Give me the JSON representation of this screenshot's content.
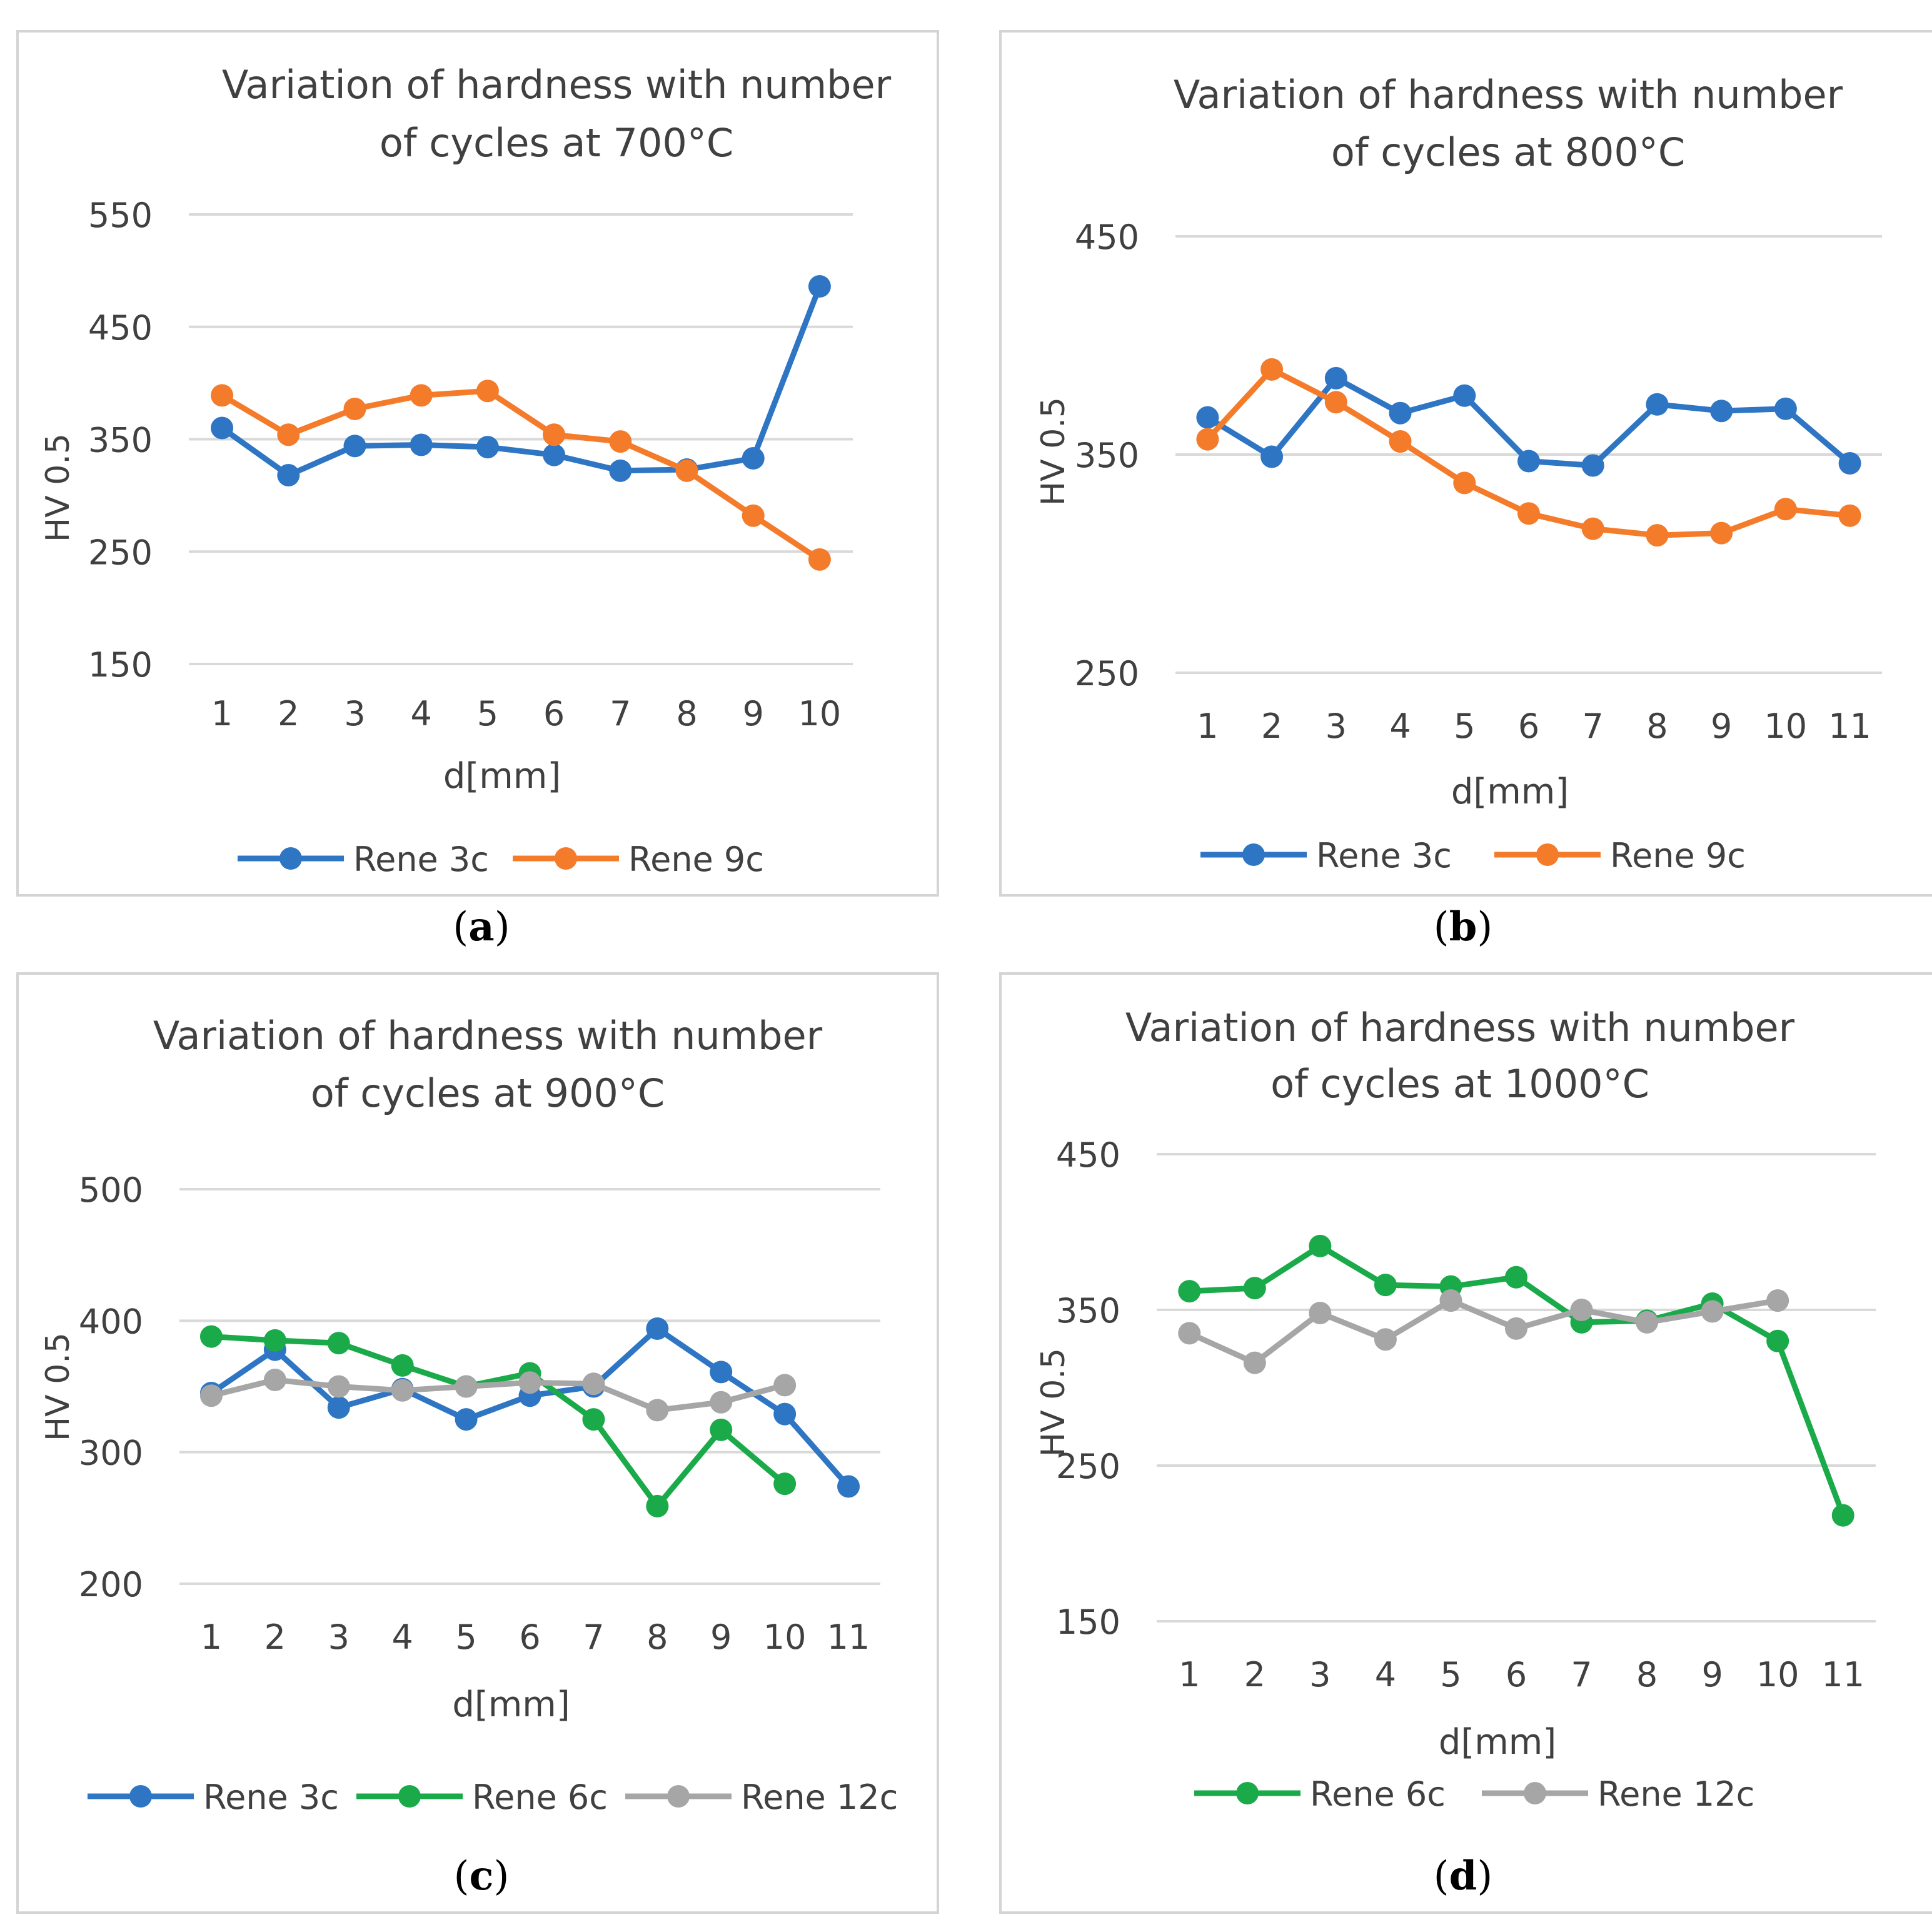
{
  "colors": {
    "Rene 3c": "#2e75c4",
    "Rene 6c": "#1aaa4a",
    "Rene 9c": "#f47b2a",
    "Rene 12c": "#a6a6a6",
    "grid": "#d9d9d9",
    "frame": "#d4d4d4",
    "text": "#404040"
  },
  "chart_data": [
    {
      "type": "line",
      "panel": "(a)",
      "caption": {
        "open": "(",
        "letter": "a",
        "close": ")"
      },
      "title_lines": [
        "Variation of hardness with number",
        "of cycles at 700°C"
      ],
      "xlabel": "d[mm]",
      "ylabel": "HV 0.5",
      "ylim": [
        150,
        550
      ],
      "yticks": [
        150,
        250,
        350,
        450,
        550
      ],
      "categories": [
        "1",
        "2",
        "3",
        "4",
        "5",
        "6",
        "7",
        "8",
        "9",
        "10"
      ],
      "grid": true,
      "legend_position": "bottom",
      "series": [
        {
          "name": "Rene 3c",
          "values": [
            360,
            318,
            344,
            345,
            343,
            336,
            322,
            323,
            333,
            486
          ]
        },
        {
          "name": "Rene 9c",
          "values": [
            389,
            354,
            377,
            389,
            393,
            354,
            348,
            322,
            282,
            243
          ]
        }
      ]
    },
    {
      "type": "line",
      "panel": "(b)",
      "caption": {
        "open": "(",
        "letter": "b",
        "close": ")"
      },
      "title_lines": [
        "Variation of hardness with number",
        "of cycles at 800°C"
      ],
      "xlabel": "d[mm]",
      "ylabel": "HV 0.5",
      "ylim": [
        250,
        450
      ],
      "yticks": [
        250,
        350,
        450
      ],
      "categories": [
        "1",
        "2",
        "3",
        "4",
        "5",
        "6",
        "7",
        "8",
        "9",
        "10",
        "11"
      ],
      "grid": true,
      "legend_position": "bottom",
      "series": [
        {
          "name": "Rene 3c",
          "values": [
            367,
            349,
            385,
            369,
            377,
            347,
            345,
            373,
            370,
            371,
            346
          ]
        },
        {
          "name": "Rene 9c",
          "values": [
            357,
            389,
            374,
            356,
            337,
            323,
            316,
            313,
            314,
            325,
            322
          ]
        }
      ]
    },
    {
      "type": "line",
      "panel": "(c)",
      "caption": {
        "open": "(",
        "letter": "c",
        "close": ")"
      },
      "title_lines": [
        "Variation of hardness with number",
        "of cycles at 900°C"
      ],
      "xlabel": "d[mm]",
      "ylabel": "HV 0.5",
      "ylim": [
        200,
        500
      ],
      "yticks": [
        200,
        300,
        400,
        500
      ],
      "categories": [
        "1",
        "2",
        "3",
        "4",
        "5",
        "6",
        "7",
        "8",
        "9",
        "10",
        "11"
      ],
      "grid": true,
      "legend_position": "bottom",
      "series": [
        {
          "name": "Rene 3c",
          "values": [
            345,
            378,
            334,
            348,
            325,
            343,
            350,
            394,
            361,
            329,
            274
          ]
        },
        {
          "name": "Rene 6c",
          "values": [
            388,
            385,
            383,
            366,
            350,
            360,
            325,
            259,
            317,
            276,
            null
          ]
        },
        {
          "name": "Rene 12c",
          "values": [
            343,
            355,
            350,
            347,
            350,
            353,
            352,
            332,
            338,
            351,
            null
          ]
        }
      ]
    },
    {
      "type": "line",
      "panel": "(d)",
      "caption": {
        "open": "(",
        "letter": "d",
        "close": ")"
      },
      "title_lines": [
        "Variation of hardness with number",
        "of cycles at 1000°C"
      ],
      "xlabel": "d[mm]",
      "ylabel": "HV 0.5",
      "ylim": [
        150,
        450
      ],
      "yticks": [
        150,
        250,
        350,
        450
      ],
      "categories": [
        "1",
        "2",
        "3",
        "4",
        "5",
        "6",
        "7",
        "8",
        "9",
        "10",
        "11"
      ],
      "grid": true,
      "legend_position": "bottom",
      "series": [
        {
          "name": "Rene 6c",
          "values": [
            362,
            364,
            391,
            366,
            365,
            371,
            342,
            343,
            354,
            330,
            218
          ]
        },
        {
          "name": "Rene 12c",
          "values": [
            335,
            316,
            348,
            331,
            356,
            338,
            350,
            342,
            349,
            356,
            null
          ]
        }
      ]
    }
  ]
}
